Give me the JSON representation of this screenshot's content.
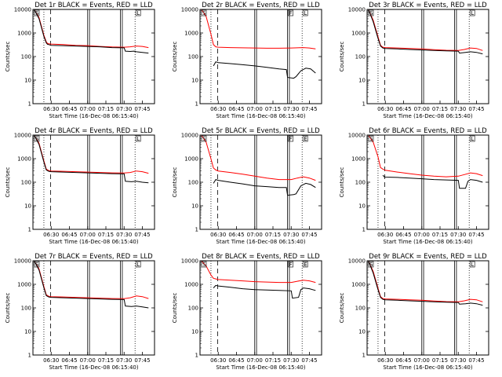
{
  "chart_data": [
    {
      "type": "line",
      "title": "Det 1r BLACK = Events, RED = LLD",
      "xlabel": "Start Time (16-Dec-08 06:15:40)",
      "ylabel": "Counts/sec",
      "ylim": [
        1,
        10000
      ],
      "yscale": "log",
      "xlim": [
        "06:15",
        "07:55"
      ],
      "x_ticks": [
        "06:30",
        "06:45",
        "07:00",
        "07:15",
        "07:30",
        "07:45"
      ],
      "y_ticks": [
        "1",
        "10",
        "100",
        "1000",
        "10000"
      ],
      "flags": [
        "S",
        "",
        "",
        "",
        "",
        "L"
      ],
      "series": [
        {
          "color": "#000000",
          "x": [
            "06:16",
            "06:20",
            "06:24",
            "06:26",
            "06:27",
            "06:28",
            "06:30",
            "06:40",
            "06:50",
            "07:00",
            "07:10",
            "07:20",
            "07:30",
            "07:31",
            "07:35",
            "07:38",
            "07:40",
            "07:45",
            "07:50"
          ],
          "values": [
            10000,
            4000,
            700,
            380,
            330,
            320,
            300,
            290,
            280,
            270,
            260,
            240,
            235,
            170,
            165,
            170,
            160,
            150,
            140
          ]
        },
        {
          "color": "#ff0000",
          "x": [
            "06:16",
            "06:20",
            "06:24",
            "06:26",
            "06:27",
            "06:28",
            "06:30",
            "06:40",
            "06:50",
            "07:00",
            "07:10",
            "07:20",
            "07:30",
            "07:35",
            "07:40",
            "07:45",
            "07:50"
          ],
          "values": [
            10000,
            4500,
            800,
            420,
            360,
            350,
            340,
            320,
            300,
            290,
            270,
            255,
            250,
            260,
            280,
            270,
            240
          ]
        }
      ]
    },
    {
      "type": "line",
      "title": "Det 2r BLACK = Events, RED = LLD",
      "xlabel": "Start Time (16-Dec-08 06:15:40)",
      "ylabel": "Counts/sec",
      "ylim": [
        1,
        10000
      ],
      "yscale": "log",
      "xlim": [
        "06:15",
        "07:55"
      ],
      "x_ticks": [
        "06:30",
        "06:45",
        "07:00",
        "07:15",
        "07:30",
        "07:45"
      ],
      "y_ticks": [
        "1",
        "10",
        "100",
        "1000",
        "10000"
      ],
      "flags": [
        "S",
        "",
        "",
        "",
        "F",
        "L"
      ],
      "series": [
        {
          "color": "#000000",
          "x": [
            "06:26",
            "06:28",
            "06:30",
            "06:40",
            "06:50",
            "07:00",
            "07:10",
            "07:20",
            "07:26",
            "07:27",
            "07:32",
            "07:34",
            "07:38",
            "07:42",
            "07:46",
            "07:50"
          ],
          "values": [
            40,
            60,
            55,
            50,
            45,
            40,
            35,
            30,
            28,
            13,
            12,
            14,
            25,
            32,
            30,
            20
          ]
        },
        {
          "color": "#ff0000",
          "x": [
            "06:16",
            "06:20",
            "06:24",
            "06:26",
            "06:28",
            "06:30",
            "06:40",
            "06:50",
            "07:00",
            "07:10",
            "07:20",
            "07:30",
            "07:40",
            "07:45",
            "07:50"
          ],
          "values": [
            10000,
            5000,
            900,
            320,
            260,
            250,
            240,
            235,
            230,
            225,
            225,
            230,
            240,
            230,
            210
          ]
        }
      ]
    },
    {
      "type": "line",
      "title": "Det 3r BLACK = Events, RED = LLD",
      "xlabel": "Start Time (16-Dec-08 06:15:40)",
      "ylabel": "Counts/sec",
      "ylim": [
        1,
        10000
      ],
      "yscale": "log",
      "xlim": [
        "06:15",
        "07:55"
      ],
      "x_ticks": [
        "06:30",
        "06:45",
        "07:00",
        "07:15",
        "07:30",
        "07:45"
      ],
      "y_ticks": [
        "1",
        "10",
        "100",
        "1000",
        "10000"
      ],
      "flags": [
        "S",
        "",
        "",
        "",
        "",
        "L"
      ],
      "series": [
        {
          "color": "#000000",
          "x": [
            "06:16",
            "06:20",
            "06:24",
            "06:26",
            "06:28",
            "06:30",
            "06:40",
            "06:50",
            "07:00",
            "07:10",
            "07:20",
            "07:30",
            "07:31",
            "07:36",
            "07:40",
            "07:45",
            "07:50"
          ],
          "values": [
            10000,
            3000,
            600,
            280,
            230,
            220,
            210,
            200,
            190,
            180,
            175,
            170,
            140,
            150,
            160,
            150,
            130
          ]
        },
        {
          "color": "#ff0000",
          "x": [
            "06:16",
            "06:20",
            "06:24",
            "06:26",
            "06:28",
            "06:30",
            "06:40",
            "06:50",
            "07:00",
            "07:10",
            "07:20",
            "07:30",
            "07:35",
            "07:40",
            "07:45",
            "07:50"
          ],
          "values": [
            10000,
            3500,
            700,
            300,
            250,
            240,
            230,
            220,
            210,
            195,
            185,
            180,
            200,
            230,
            220,
            180
          ]
        }
      ]
    },
    {
      "type": "line",
      "title": "Det 4r BLACK = Events, RED = LLD",
      "xlabel": "Start Time (16-Dec-08 06:15:40)",
      "ylabel": "Counts/sec",
      "ylim": [
        1,
        10000
      ],
      "yscale": "log",
      "xlim": [
        "06:15",
        "07:55"
      ],
      "x_ticks": [
        "06:30",
        "06:45",
        "07:00",
        "07:15",
        "07:30",
        "07:45"
      ],
      "y_ticks": [
        "1",
        "10",
        "100",
        "1000",
        "10000"
      ],
      "flags": [
        "S",
        "",
        "",
        "",
        "",
        "L"
      ],
      "series": [
        {
          "color": "#000000",
          "x": [
            "06:16",
            "06:20",
            "06:24",
            "06:26",
            "06:28",
            "06:30",
            "06:40",
            "06:50",
            "07:00",
            "07:10",
            "07:20",
            "07:30",
            "07:31",
            "07:36",
            "07:40",
            "07:45",
            "07:50"
          ],
          "values": [
            10000,
            4000,
            700,
            330,
            290,
            280,
            270,
            260,
            250,
            240,
            230,
            225,
            110,
            105,
            110,
            100,
            95
          ]
        },
        {
          "color": "#ff0000",
          "x": [
            "06:16",
            "06:20",
            "06:24",
            "06:26",
            "06:28",
            "06:30",
            "06:40",
            "06:50",
            "07:00",
            "07:10",
            "07:20",
            "07:30",
            "07:35",
            "07:40",
            "07:45",
            "07:50"
          ],
          "values": [
            10000,
            4500,
            800,
            360,
            310,
            300,
            290,
            280,
            270,
            260,
            250,
            245,
            260,
            300,
            280,
            240
          ]
        }
      ]
    },
    {
      "type": "line",
      "title": "Det 5r BLACK = Events, RED = LLD",
      "xlabel": "Start Time (16-Dec-08 06:15:40)",
      "ylabel": "Counts/sec",
      "ylim": [
        1,
        10000
      ],
      "yscale": "log",
      "xlim": [
        "06:15",
        "07:55"
      ],
      "x_ticks": [
        "06:30",
        "06:45",
        "07:00",
        "07:15",
        "07:30",
        "07:45"
      ],
      "y_ticks": [
        "1",
        "10",
        "100",
        "1000",
        "10000"
      ],
      "flags": [
        "S",
        "",
        "",
        "",
        "F",
        "E"
      ],
      "series": [
        {
          "color": "#000000",
          "x": [
            "06:26",
            "06:28",
            "06:30",
            "06:40",
            "06:50",
            "07:00",
            "07:10",
            "07:20",
            "07:26",
            "07:27",
            "07:32",
            "07:34",
            "07:38",
            "07:42",
            "07:46",
            "07:50"
          ],
          "values": [
            90,
            130,
            120,
            100,
            85,
            70,
            65,
            60,
            60,
            28,
            30,
            32,
            70,
            90,
            80,
            60
          ]
        },
        {
          "color": "#ff0000",
          "x": [
            "06:16",
            "06:20",
            "06:24",
            "06:26",
            "06:28",
            "06:30",
            "06:40",
            "06:50",
            "07:00",
            "07:10",
            "07:20",
            "07:30",
            "07:35",
            "07:40",
            "07:45",
            "07:50"
          ],
          "values": [
            10000,
            5000,
            1000,
            400,
            330,
            300,
            260,
            220,
            180,
            150,
            130,
            130,
            150,
            170,
            150,
            120
          ]
        }
      ]
    },
    {
      "type": "line",
      "title": "Det 6r BLACK = Events, RED = LLD",
      "xlabel": "Start Time (16-Dec-08 06:15:40)",
      "ylabel": "Counts/sec",
      "ylim": [
        1,
        10000
      ],
      "yscale": "log",
      "xlim": [
        "06:15",
        "07:55"
      ],
      "x_ticks": [
        "06:30",
        "06:45",
        "07:00",
        "07:15",
        "07:30",
        "07:45"
      ],
      "y_ticks": [
        "1",
        "10",
        "100",
        "1000",
        "10000"
      ],
      "flags": [
        "S",
        "",
        "",
        "",
        "",
        "L"
      ],
      "series": [
        {
          "color": "#000000",
          "x": [
            "06:28",
            "06:29",
            "06:30",
            "06:40",
            "06:50",
            "07:00",
            "07:10",
            "07:20",
            "07:30",
            "07:31",
            "07:36",
            "07:38",
            "07:40",
            "07:45",
            "07:50"
          ],
          "values": [
            200,
            170,
            165,
            160,
            150,
            140,
            130,
            125,
            120,
            55,
            55,
            110,
            130,
            120,
            100
          ]
        },
        {
          "color": "#ff0000",
          "x": [
            "06:16",
            "06:20",
            "06:24",
            "06:26",
            "06:28",
            "06:30",
            "06:40",
            "06:50",
            "07:00",
            "07:10",
            "07:20",
            "07:30",
            "07:35",
            "07:40",
            "07:45",
            "07:50"
          ],
          "values": [
            10000,
            5000,
            1200,
            420,
            360,
            320,
            270,
            230,
            200,
            180,
            170,
            180,
            210,
            250,
            230,
            190
          ]
        }
      ]
    },
    {
      "type": "line",
      "title": "Det 7r BLACK = Events, RED = LLD",
      "xlabel": "Start Time (16-Dec-08 06:15:40)",
      "ylabel": "Counts/sec",
      "ylim": [
        1,
        10000
      ],
      "yscale": "log",
      "xlim": [
        "06:15",
        "07:55"
      ],
      "x_ticks": [
        "06:30",
        "06:45",
        "07:00",
        "07:15",
        "07:30",
        "07:45"
      ],
      "y_ticks": [
        "1",
        "10",
        "100",
        "1000",
        "10000"
      ],
      "flags": [
        "S",
        "",
        "",
        "",
        "",
        "L"
      ],
      "series": [
        {
          "color": "#000000",
          "x": [
            "06:16",
            "06:20",
            "06:24",
            "06:26",
            "06:28",
            "06:30",
            "06:40",
            "06:50",
            "07:00",
            "07:10",
            "07:20",
            "07:30",
            "07:31",
            "07:36",
            "07:40",
            "07:45",
            "07:50"
          ],
          "values": [
            10000,
            4000,
            700,
            330,
            290,
            280,
            270,
            260,
            250,
            240,
            230,
            225,
            120,
            115,
            120,
            110,
            100
          ]
        },
        {
          "color": "#ff0000",
          "x": [
            "06:16",
            "06:20",
            "06:24",
            "06:26",
            "06:28",
            "06:30",
            "06:40",
            "06:50",
            "07:00",
            "07:10",
            "07:20",
            "07:30",
            "07:35",
            "07:40",
            "07:45",
            "07:50"
          ],
          "values": [
            10000,
            4500,
            800,
            360,
            310,
            300,
            290,
            280,
            270,
            260,
            250,
            245,
            270,
            320,
            300,
            250
          ]
        }
      ]
    },
    {
      "type": "line",
      "title": "Det 8r BLACK = Events, RED = LLD",
      "xlabel": "Start Time (16-Dec-08 06:15:40)",
      "ylabel": "Counts/sec",
      "ylim": [
        1,
        10000
      ],
      "yscale": "log",
      "xlim": [
        "06:15",
        "07:55"
      ],
      "x_ticks": [
        "06:30",
        "06:45",
        "07:00",
        "07:15",
        "07:30",
        "07:45"
      ],
      "y_ticks": [
        "1",
        "10",
        "100",
        "1000",
        "10000"
      ],
      "flags": [
        "S",
        "",
        "",
        "",
        "F",
        "E"
      ],
      "series": [
        {
          "color": "#000000",
          "x": [
            "06:26",
            "06:28",
            "06:30",
            "06:40",
            "06:50",
            "07:00",
            "07:10",
            "07:20",
            "07:30",
            "07:31",
            "07:36",
            "07:38",
            "07:40",
            "07:45",
            "07:50"
          ],
          "values": [
            700,
            900,
            850,
            750,
            650,
            600,
            570,
            550,
            530,
            260,
            280,
            600,
            700,
            650,
            550
          ]
        },
        {
          "color": "#ff0000",
          "x": [
            "06:16",
            "06:20",
            "06:24",
            "06:26",
            "06:28",
            "06:30",
            "06:40",
            "06:50",
            "07:00",
            "07:10",
            "07:20",
            "07:30",
            "07:35",
            "07:40",
            "07:45",
            "07:50"
          ],
          "values": [
            10000,
            6000,
            2500,
            1800,
            1700,
            1600,
            1500,
            1400,
            1300,
            1250,
            1200,
            1200,
            1350,
            1500,
            1400,
            1200
          ]
        }
      ]
    },
    {
      "type": "line",
      "title": "Det 9r BLACK = Events, RED = LLD",
      "xlabel": "Start Time (16-Dec-08 06:15:40)",
      "ylabel": "Counts/sec",
      "ylim": [
        1,
        10000
      ],
      "yscale": "log",
      "xlim": [
        "06:15",
        "07:55"
      ],
      "x_ticks": [
        "06:30",
        "06:45",
        "07:00",
        "07:15",
        "07:30",
        "07:45"
      ],
      "y_ticks": [
        "1",
        "10",
        "100",
        "1000",
        "10000"
      ],
      "flags": [
        "S",
        "",
        "",
        "",
        "",
        "L"
      ],
      "series": [
        {
          "color": "#000000",
          "x": [
            "06:16",
            "06:20",
            "06:24",
            "06:26",
            "06:28",
            "06:30",
            "06:40",
            "06:50",
            "07:00",
            "07:10",
            "07:20",
            "07:30",
            "07:31",
            "07:36",
            "07:40",
            "07:45",
            "07:50"
          ],
          "values": [
            10000,
            3000,
            600,
            280,
            230,
            220,
            210,
            200,
            190,
            180,
            175,
            170,
            145,
            150,
            160,
            150,
            130
          ]
        },
        {
          "color": "#ff0000",
          "x": [
            "06:16",
            "06:20",
            "06:24",
            "06:26",
            "06:28",
            "06:30",
            "06:40",
            "06:50",
            "07:00",
            "07:10",
            "07:20",
            "07:30",
            "07:35",
            "07:40",
            "07:45",
            "07:50"
          ],
          "values": [
            10000,
            3500,
            700,
            300,
            250,
            240,
            230,
            220,
            210,
            195,
            185,
            180,
            200,
            230,
            220,
            180
          ]
        }
      ]
    }
  ]
}
